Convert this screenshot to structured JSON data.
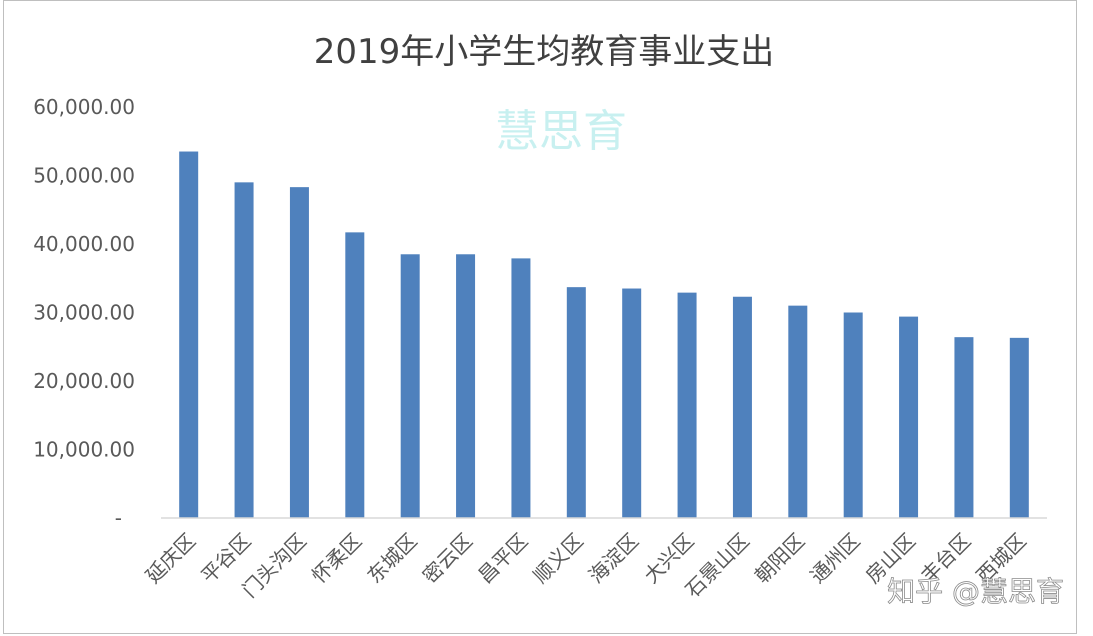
{
  "chart_data": {
    "type": "bar",
    "title": "2019年小学生均教育事业支出",
    "xlabel": "",
    "ylabel": "",
    "ylim": [
      0,
      60000
    ],
    "yticks": [
      "-",
      "10,000.00",
      "20,000.00",
      "30,000.00",
      "40,000.00",
      "50,000.00",
      "60,000.00"
    ],
    "grid": false,
    "legend": "none",
    "bar_color": "#4f81bd",
    "categories": [
      "延庆区",
      "平谷区",
      "门头沟区",
      "怀柔区",
      "东城区",
      "密云区",
      "昌平区",
      "顺义区",
      "海淀区",
      "大兴区",
      "石景山区",
      "朝阳区",
      "通州区",
      "房山区",
      "丰台区",
      "西城区"
    ],
    "series": [
      {
        "values": [
          53500,
          49000,
          48300,
          41700,
          38500,
          38500,
          37900,
          33700,
          33500,
          32900,
          32300,
          31000,
          30000,
          29400,
          26400,
          26300
        ]
      }
    ]
  },
  "watermarks": {
    "center": "慧思育",
    "corner": "知乎 @慧思育"
  }
}
